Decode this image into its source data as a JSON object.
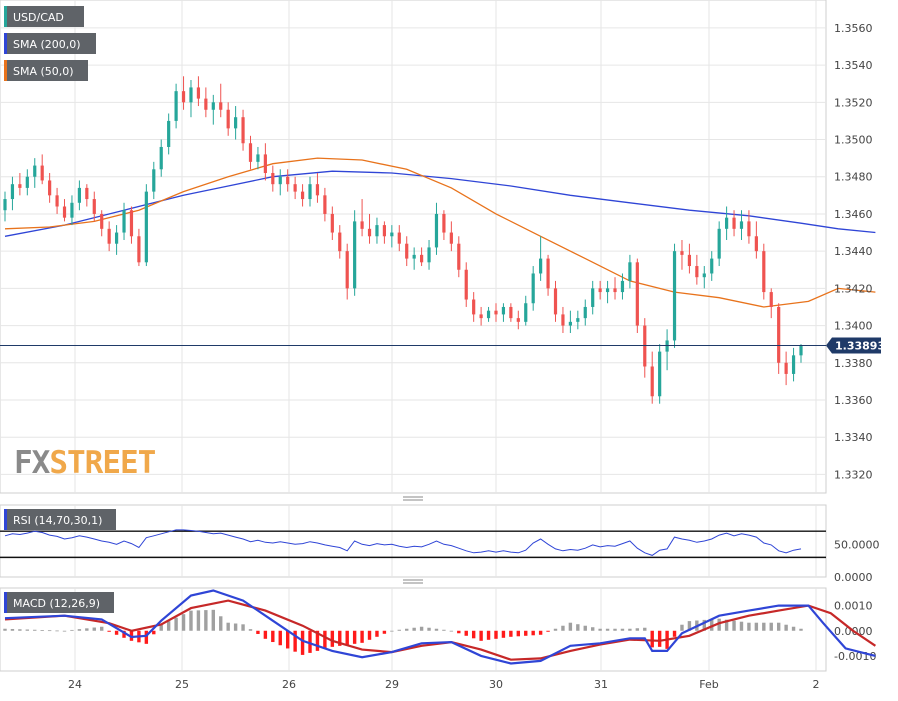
{
  "symbol": "USD/CAD",
  "watermark": {
    "fx": "FX",
    "street": "STREET"
  },
  "indicators": {
    "sma200_label": "SMA (200,0)",
    "sma50_label": "SMA (50,0)",
    "rsi_label": "RSI (14,70,30,1)",
    "macd_label": "MACD (12,26,9)"
  },
  "colors": {
    "up": "#26a69a",
    "down": "#ef5350",
    "sma200": "#2f45d6",
    "sma50": "#e8731c",
    "rsi": "#2f45d6",
    "macd": "#2f45d6",
    "signal": "#c62828",
    "hist_up": "#a0a0a0",
    "hist_down": "#ff1a1a",
    "grid": "#e6e6e6",
    "price_tag": "#1f3a68"
  },
  "chart_data": [
    {
      "type": "candlestick",
      "name": "price",
      "ylim": [
        1.331,
        1.3575
      ],
      "y_ticks": [
        "1.3320",
        "1.3340",
        "1.3360",
        "1.3380",
        "1.3400",
        "1.3420",
        "1.3440",
        "1.3460",
        "1.3480",
        "1.3500",
        "1.3520",
        "1.3540",
        "1.3560"
      ],
      "x_ticks": [
        "24",
        "25",
        "26",
        "29",
        "30",
        "31",
        "Feb",
        "2"
      ],
      "last_price": "1.33893",
      "ohlc": [
        [
          1.3462,
          1.3472,
          1.3456,
          1.3468
        ],
        [
          1.3468,
          1.348,
          1.3462,
          1.3476
        ],
        [
          1.3476,
          1.3482,
          1.347,
          1.3474
        ],
        [
          1.3474,
          1.3484,
          1.347,
          1.348
        ],
        [
          1.348,
          1.349,
          1.3474,
          1.3486
        ],
        [
          1.3486,
          1.3492,
          1.3476,
          1.3478
        ],
        [
          1.3478,
          1.3482,
          1.3466,
          1.347
        ],
        [
          1.347,
          1.3474,
          1.346,
          1.3464
        ],
        [
          1.3464,
          1.3468,
          1.3456,
          1.3458
        ],
        [
          1.3458,
          1.347,
          1.3454,
          1.3466
        ],
        [
          1.3466,
          1.3478,
          1.3462,
          1.3474
        ],
        [
          1.3474,
          1.3476,
          1.3464,
          1.3468
        ],
        [
          1.3468,
          1.3472,
          1.3456,
          1.346
        ],
        [
          1.346,
          1.3462,
          1.3448,
          1.3452
        ],
        [
          1.3452,
          1.3456,
          1.344,
          1.3444
        ],
        [
          1.3444,
          1.3454,
          1.3438,
          1.345
        ],
        [
          1.345,
          1.3466,
          1.3446,
          1.3462
        ],
        [
          1.3462,
          1.3464,
          1.3444,
          1.3448
        ],
        [
          1.3448,
          1.3452,
          1.3432,
          1.3434
        ],
        [
          1.3434,
          1.3476,
          1.3432,
          1.3472
        ],
        [
          1.3472,
          1.3488,
          1.3468,
          1.3484
        ],
        [
          1.3484,
          1.35,
          1.348,
          1.3496
        ],
        [
          1.3496,
          1.3514,
          1.3492,
          1.351
        ],
        [
          1.351,
          1.353,
          1.3506,
          1.3526
        ],
        [
          1.3526,
          1.3534,
          1.3516,
          1.352
        ],
        [
          1.352,
          1.3532,
          1.3512,
          1.3528
        ],
        [
          1.3528,
          1.3534,
          1.3518,
          1.3522
        ],
        [
          1.3522,
          1.3528,
          1.3512,
          1.3516
        ],
        [
          1.3516,
          1.3524,
          1.3508,
          1.352
        ],
        [
          1.352,
          1.353,
          1.3512,
          1.3516
        ],
        [
          1.3516,
          1.352,
          1.3502,
          1.3506
        ],
        [
          1.3506,
          1.3518,
          1.35,
          1.3512
        ],
        [
          1.3512,
          1.3516,
          1.3494,
          1.3498
        ],
        [
          1.3498,
          1.3502,
          1.3484,
          1.3488
        ],
        [
          1.3488,
          1.3496,
          1.3484,
          1.3492
        ],
        [
          1.3492,
          1.3498,
          1.3478,
          1.3482
        ],
        [
          1.3482,
          1.3486,
          1.3472,
          1.3476
        ],
        [
          1.3476,
          1.3484,
          1.347,
          1.348
        ],
        [
          1.348,
          1.3484,
          1.3472,
          1.3476
        ],
        [
          1.3476,
          1.348,
          1.3468,
          1.3472
        ],
        [
          1.3472,
          1.3476,
          1.3464,
          1.3468
        ],
        [
          1.3468,
          1.348,
          1.3464,
          1.3476
        ],
        [
          1.3476,
          1.3482,
          1.3466,
          1.347
        ],
        [
          1.347,
          1.3474,
          1.3456,
          1.346
        ],
        [
          1.346,
          1.3464,
          1.3446,
          1.345
        ],
        [
          1.345,
          1.3454,
          1.3436,
          1.344
        ],
        [
          1.344,
          1.3444,
          1.3414,
          1.342
        ],
        [
          1.342,
          1.3462,
          1.3416,
          1.3456
        ],
        [
          1.3456,
          1.3468,
          1.3448,
          1.3452
        ],
        [
          1.3452,
          1.346,
          1.3444,
          1.3448
        ],
        [
          1.3448,
          1.3458,
          1.3444,
          1.3454
        ],
        [
          1.3454,
          1.3456,
          1.3444,
          1.3448
        ],
        [
          1.3448,
          1.3454,
          1.3442,
          1.345
        ],
        [
          1.345,
          1.3454,
          1.344,
          1.3444
        ],
        [
          1.3444,
          1.3448,
          1.3432,
          1.3436
        ],
        [
          1.3436,
          1.3442,
          1.343,
          1.3438
        ],
        [
          1.3438,
          1.3442,
          1.3432,
          1.3434
        ],
        [
          1.3434,
          1.3446,
          1.343,
          1.3442
        ],
        [
          1.3442,
          1.3466,
          1.3438,
          1.346
        ],
        [
          1.346,
          1.3462,
          1.3446,
          1.345
        ],
        [
          1.345,
          1.3456,
          1.344,
          1.3444
        ],
        [
          1.3444,
          1.3448,
          1.3426,
          1.343
        ],
        [
          1.343,
          1.3434,
          1.341,
          1.3414
        ],
        [
          1.3414,
          1.3418,
          1.3402,
          1.3406
        ],
        [
          1.3406,
          1.341,
          1.34,
          1.3404
        ],
        [
          1.3404,
          1.341,
          1.3402,
          1.3408
        ],
        [
          1.3408,
          1.3412,
          1.3402,
          1.3406
        ],
        [
          1.3406,
          1.3412,
          1.3402,
          1.341
        ],
        [
          1.341,
          1.3412,
          1.3402,
          1.3404
        ],
        [
          1.3404,
          1.3408,
          1.3398,
          1.3402
        ],
        [
          1.3402,
          1.3416,
          1.34,
          1.3412
        ],
        [
          1.3412,
          1.3432,
          1.3408,
          1.3428
        ],
        [
          1.3428,
          1.3448,
          1.3424,
          1.3436
        ],
        [
          1.3436,
          1.3438,
          1.3416,
          1.342
        ],
        [
          1.342,
          1.3424,
          1.3402,
          1.3406
        ],
        [
          1.3406,
          1.341,
          1.3396,
          1.34
        ],
        [
          1.34,
          1.3408,
          1.3396,
          1.3402
        ],
        [
          1.3402,
          1.3408,
          1.3398,
          1.3404
        ],
        [
          1.3404,
          1.3414,
          1.34,
          1.341
        ],
        [
          1.341,
          1.3424,
          1.3406,
          1.342
        ],
        [
          1.342,
          1.3424,
          1.3414,
          1.3418
        ],
        [
          1.3418,
          1.3424,
          1.3412,
          1.342
        ],
        [
          1.342,
          1.3426,
          1.3414,
          1.3418
        ],
        [
          1.3418,
          1.3428,
          1.3414,
          1.3424
        ],
        [
          1.3424,
          1.3438,
          1.342,
          1.3434
        ],
        [
          1.3434,
          1.3436,
          1.3396,
          1.34
        ],
        [
          1.34,
          1.3404,
          1.3372,
          1.3378
        ],
        [
          1.3378,
          1.3386,
          1.3358,
          1.3362
        ],
        [
          1.3362,
          1.339,
          1.3358,
          1.3386
        ],
        [
          1.3386,
          1.3398,
          1.3376,
          1.3392
        ],
        [
          1.3392,
          1.3444,
          1.3388,
          1.344
        ],
        [
          1.344,
          1.3446,
          1.343,
          1.3438
        ],
        [
          1.3438,
          1.3444,
          1.3428,
          1.3432
        ],
        [
          1.3432,
          1.3438,
          1.3422,
          1.3426
        ],
        [
          1.3426,
          1.3432,
          1.342,
          1.3428
        ],
        [
          1.3428,
          1.344,
          1.3424,
          1.3436
        ],
        [
          1.3436,
          1.3456,
          1.3432,
          1.3452
        ],
        [
          1.3452,
          1.3464,
          1.3446,
          1.3458
        ],
        [
          1.3458,
          1.3462,
          1.3448,
          1.3452
        ],
        [
          1.3452,
          1.3462,
          1.3446,
          1.3456
        ],
        [
          1.3456,
          1.3462,
          1.3444,
          1.3448
        ],
        [
          1.3448,
          1.3456,
          1.3436,
          1.344
        ],
        [
          1.344,
          1.3444,
          1.3414,
          1.3418
        ],
        [
          1.3418,
          1.342,
          1.3404,
          1.341
        ],
        [
          1.341,
          1.3412,
          1.3374,
          1.338
        ],
        [
          1.338,
          1.3386,
          1.3368,
          1.3374
        ],
        [
          1.3374,
          1.3388,
          1.337,
          1.3384
        ],
        [
          1.3384,
          1.339,
          1.338,
          1.3389
        ]
      ],
      "sma200": [
        [
          0,
          1.3448
        ],
        [
          8,
          1.3454
        ],
        [
          16,
          1.3462
        ],
        [
          24,
          1.347
        ],
        [
          30,
          1.3475
        ],
        [
          36,
          1.348
        ],
        [
          44,
          1.3483
        ],
        [
          52,
          1.3482
        ],
        [
          60,
          1.3479
        ],
        [
          68,
          1.3475
        ],
        [
          76,
          1.347
        ],
        [
          84,
          1.3466
        ],
        [
          92,
          1.3462
        ],
        [
          100,
          1.3459
        ],
        [
          107,
          1.3455
        ],
        [
          112,
          1.3452
        ],
        [
          117,
          1.345
        ]
      ],
      "sma50": [
        [
          0,
          1.3452
        ],
        [
          6,
          1.3453
        ],
        [
          12,
          1.3456
        ],
        [
          18,
          1.3462
        ],
        [
          24,
          1.3472
        ],
        [
          30,
          1.348
        ],
        [
          36,
          1.3487
        ],
        [
          42,
          1.349
        ],
        [
          48,
          1.3489
        ],
        [
          54,
          1.3484
        ],
        [
          60,
          1.3474
        ],
        [
          66,
          1.346
        ],
        [
          72,
          1.3448
        ],
        [
          78,
          1.3436
        ],
        [
          84,
          1.3424
        ],
        [
          90,
          1.3418
        ],
        [
          96,
          1.3415
        ],
        [
          102,
          1.341
        ],
        [
          108,
          1.3413
        ],
        [
          112,
          1.342
        ],
        [
          117,
          1.3418
        ]
      ]
    },
    {
      "type": "line",
      "name": "RSI",
      "ylim": [
        0,
        110
      ],
      "y_ticks": [
        "50.0000",
        "0.0000"
      ],
      "levels": [
        70,
        30
      ],
      "values": [
        63,
        66,
        65,
        67,
        70,
        68,
        64,
        62,
        58,
        60,
        63,
        61,
        58,
        55,
        53,
        50,
        55,
        51,
        45,
        60,
        63,
        66,
        69,
        72,
        72,
        71,
        70,
        68,
        66,
        67,
        64,
        61,
        58,
        54,
        56,
        53,
        52,
        54,
        52,
        50,
        51,
        54,
        52,
        49,
        47,
        45,
        40,
        55,
        50,
        48,
        51,
        49,
        50,
        47,
        45,
        47,
        46,
        50,
        55,
        50,
        48,
        44,
        40,
        37,
        38,
        40,
        38,
        40,
        38,
        37,
        41,
        52,
        58,
        50,
        43,
        40,
        42,
        41,
        44,
        49,
        46,
        48,
        47,
        51,
        55,
        44,
        37,
        33,
        41,
        43,
        61,
        58,
        56,
        53,
        55,
        58,
        64,
        67,
        63,
        66,
        64,
        61,
        52,
        49,
        40,
        37,
        41,
        43
      ]
    },
    {
      "type": "bar+line",
      "name": "MACD",
      "ylim": [
        -0.0016,
        0.0017
      ],
      "y_ticks": [
        "0.0010",
        "0.0000",
        "-0.0010"
      ],
      "macd": [
        [
          0,
          0.0005
        ],
        [
          8,
          0.0006
        ],
        [
          13,
          0.00045
        ],
        [
          17,
          -0.00025
        ],
        [
          19,
          -0.0002
        ],
        [
          21,
          0.0004
        ],
        [
          25,
          0.0014
        ],
        [
          28,
          0.0016
        ],
        [
          32,
          0.0012
        ],
        [
          36,
          0.0004
        ],
        [
          40,
          -0.0004
        ],
        [
          44,
          -0.0008
        ],
        [
          48,
          -0.00105
        ],
        [
          52,
          -0.00085
        ],
        [
          56,
          -0.0005
        ],
        [
          60,
          -0.00045
        ],
        [
          64,
          -0.001
        ],
        [
          68,
          -0.0013
        ],
        [
          72,
          -0.0012
        ],
        [
          76,
          -0.0006
        ],
        [
          80,
          -0.0005
        ],
        [
          84,
          -0.0003
        ],
        [
          86,
          -0.0003
        ],
        [
          87,
          -0.0008
        ],
        [
          89,
          -0.0008
        ],
        [
          91,
          -0.0001
        ],
        [
          96,
          0.0006
        ],
        [
          100,
          0.0008
        ],
        [
          104,
          0.001
        ],
        [
          108,
          0.001
        ],
        [
          110,
          0.0003
        ],
        [
          113,
          -0.0007
        ],
        [
          117,
          -0.001
        ]
      ],
      "signal": [
        [
          0,
          0.00045
        ],
        [
          8,
          0.0006
        ],
        [
          14,
          0.0003
        ],
        [
          17,
          0.0
        ],
        [
          21,
          0.00025
        ],
        [
          25,
          0.0009
        ],
        [
          30,
          0.0012
        ],
        [
          35,
          0.0008
        ],
        [
          40,
          0.0002
        ],
        [
          44,
          -0.0004
        ],
        [
          48,
          -0.00075
        ],
        [
          52,
          -0.00085
        ],
        [
          56,
          -0.0006
        ],
        [
          60,
          -0.00045
        ],
        [
          64,
          -0.00075
        ],
        [
          68,
          -0.00115
        ],
        [
          72,
          -0.0011
        ],
        [
          76,
          -0.0008
        ],
        [
          80,
          -0.00055
        ],
        [
          84,
          -0.00035
        ],
        [
          88,
          -0.0004
        ],
        [
          92,
          -0.0002
        ],
        [
          96,
          0.0003
        ],
        [
          100,
          0.0006
        ],
        [
          104,
          0.0008
        ],
        [
          108,
          0.001
        ],
        [
          111,
          0.0007
        ],
        [
          114,
          0.0
        ],
        [
          117,
          -0.0006
        ]
      ]
    }
  ]
}
